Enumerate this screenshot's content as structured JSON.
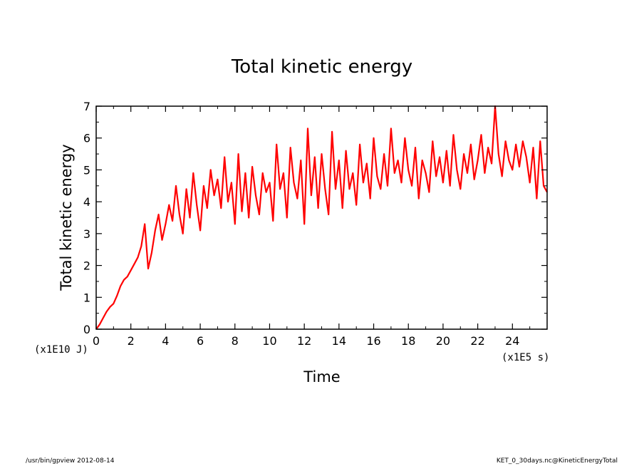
{
  "footer": {
    "left": "/usr/bin/gpview   2012-08-14",
    "right": "KET_0_30days.nc@KineticEnergyTotal"
  },
  "chart_data": {
    "type": "line",
    "title": "Total kinetic energy",
    "xlabel": "Time",
    "ylabel": "Total kinetic energy",
    "x_unit_label": "(x1E5 s)",
    "y_unit_label": "(x1E10 J)",
    "xlim": [
      0,
      26
    ],
    "ylim": [
      0,
      7
    ],
    "x_ticks": [
      "0",
      "2",
      "4",
      "6",
      "8",
      "10",
      "12",
      "14",
      "16",
      "18",
      "20",
      "22",
      "24"
    ],
    "y_ticks": [
      "0",
      "1",
      "2",
      "3",
      "4",
      "5",
      "6",
      "7"
    ],
    "grid": false,
    "line_color": "#ff0000",
    "series": [
      {
        "x": [
          0,
          0.2,
          0.4,
          0.6,
          0.8,
          1.0,
          1.2,
          1.4,
          1.6,
          1.8,
          2.0,
          2.2,
          2.4,
          2.6,
          2.8,
          3.0,
          3.2,
          3.4,
          3.6,
          3.8,
          4.0,
          4.2,
          4.4,
          4.6,
          4.8,
          5.0,
          5.2,
          5.4,
          5.6,
          5.8,
          6.0,
          6.2,
          6.4,
          6.6,
          6.8,
          7.0,
          7.2,
          7.4,
          7.6,
          7.8,
          8.0,
          8.2,
          8.4,
          8.6,
          8.8,
          9.0,
          9.2,
          9.4,
          9.6,
          9.8,
          10.0,
          10.2,
          10.4,
          10.6,
          10.8,
          11.0,
          11.2,
          11.4,
          11.6,
          11.8,
          12.0,
          12.2,
          12.4,
          12.6,
          12.8,
          13.0,
          13.2,
          13.4,
          13.6,
          13.8,
          14.0,
          14.2,
          14.4,
          14.6,
          14.8,
          15.0,
          15.2,
          15.4,
          15.6,
          15.8,
          16.0,
          16.2,
          16.4,
          16.6,
          16.8,
          17.0,
          17.2,
          17.4,
          17.6,
          17.8,
          18.0,
          18.2,
          18.4,
          18.6,
          18.8,
          19.0,
          19.2,
          19.4,
          19.6,
          19.8,
          20.0,
          20.2,
          20.4,
          20.6,
          20.8,
          21.0,
          21.2,
          21.4,
          21.6,
          21.8,
          22.0,
          22.2,
          22.4,
          22.6,
          22.8,
          23.0,
          23.2,
          23.4,
          23.6,
          23.8,
          24.0,
          24.2,
          24.4,
          24.6,
          24.8,
          25.0,
          25.2,
          25.4,
          25.6,
          25.8,
          26.0
        ],
        "y": [
          0.0,
          0.15,
          0.35,
          0.55,
          0.7,
          0.8,
          1.05,
          1.35,
          1.55,
          1.65,
          1.85,
          2.05,
          2.25,
          2.6,
          3.3,
          1.9,
          2.4,
          3.1,
          3.6,
          2.8,
          3.3,
          3.9,
          3.4,
          4.5,
          3.6,
          3.0,
          4.4,
          3.5,
          4.9,
          3.9,
          3.1,
          4.5,
          3.8,
          5.0,
          4.2,
          4.7,
          3.8,
          5.4,
          4.0,
          4.6,
          3.3,
          5.5,
          3.7,
          4.9,
          3.5,
          5.1,
          4.2,
          3.6,
          4.9,
          4.3,
          4.6,
          3.4,
          5.8,
          4.4,
          4.9,
          3.5,
          5.7,
          4.6,
          4.1,
          5.3,
          3.3,
          6.3,
          4.2,
          5.4,
          3.8,
          5.5,
          4.4,
          3.6,
          6.2,
          4.4,
          5.3,
          3.8,
          5.6,
          4.4,
          4.9,
          3.9,
          5.8,
          4.6,
          5.2,
          4.1,
          6.0,
          4.8,
          4.4,
          5.5,
          4.5,
          6.3,
          4.9,
          5.3,
          4.6,
          6.0,
          5.0,
          4.5,
          5.7,
          4.1,
          5.3,
          4.9,
          4.3,
          5.9,
          4.8,
          5.4,
          4.6,
          5.6,
          4.5,
          6.1,
          5.0,
          4.4,
          5.5,
          4.9,
          5.8,
          4.7,
          5.3,
          6.1,
          4.9,
          5.7,
          5.2,
          7.0,
          5.5,
          4.8,
          5.9,
          5.3,
          5.0,
          5.8,
          5.1,
          5.9,
          5.4,
          4.6,
          5.7,
          4.1,
          5.9,
          4.5,
          4.3
        ]
      }
    ]
  }
}
